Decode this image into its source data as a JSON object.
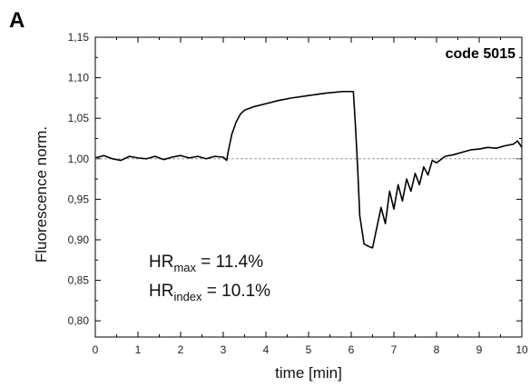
{
  "panel_letter": "A",
  "annotations": {
    "code": "code 5015",
    "hr_max": {
      "base": "HR",
      "sub": "max",
      "rest": " = 11.4%"
    },
    "hr_index": {
      "base": "HR",
      "sub": "index",
      "rest": " = 10.1%"
    }
  },
  "chart_data": {
    "type": "line",
    "xlabel": "time [min]",
    "ylabel": "Fluorescence norm.",
    "xlim": [
      0,
      10
    ],
    "ylim": [
      0.78,
      1.15
    ],
    "x_ticks": [
      0,
      1,
      2,
      3,
      4,
      5,
      6,
      7,
      8,
      9,
      10
    ],
    "x_tick_labels": [
      "0",
      "1",
      "2",
      "3",
      "4",
      "5",
      "6",
      "7",
      "8",
      "9",
      "10"
    ],
    "y_ticks": [
      0.8,
      0.85,
      0.9,
      0.95,
      1.0,
      1.05,
      1.1,
      1.15
    ],
    "y_tick_labels": [
      "0,80",
      "0,85",
      "0,90",
      "0,95",
      "1,00",
      "1,05",
      "1,10",
      "1,15"
    ],
    "reference_line": {
      "y": 1.0,
      "style": "dashed",
      "color": "#9a9a9a"
    },
    "grid": false,
    "line_color": "#000000",
    "series": [
      {
        "x": [
          0,
          0.2,
          0.4,
          0.6,
          0.8,
          1.0,
          1.2,
          1.4,
          1.6,
          1.8,
          2.0,
          2.2,
          2.4,
          2.6,
          2.8,
          3.0,
          3.08,
          3.12,
          3.2,
          3.3,
          3.4,
          3.5,
          3.7,
          4.0,
          4.3,
          4.6,
          5.0,
          5.4,
          5.8,
          6.05,
          6.1,
          6.15,
          6.2,
          6.3,
          6.4,
          6.5,
          6.6,
          6.7,
          6.8,
          6.9,
          7.0,
          7.1,
          7.2,
          7.3,
          7.4,
          7.5,
          7.6,
          7.7,
          7.8,
          7.9,
          8.0,
          8.2,
          8.4,
          8.6,
          8.8,
          9.0,
          9.2,
          9.4,
          9.6,
          9.8,
          9.9,
          10.0
        ],
        "y": [
          1.001,
          1.004,
          1.0,
          0.998,
          1.003,
          1.001,
          1.0,
          1.003,
          0.999,
          1.002,
          1.004,
          1.001,
          1.003,
          1.0,
          1.003,
          1.002,
          0.998,
          1.01,
          1.03,
          1.045,
          1.055,
          1.06,
          1.064,
          1.068,
          1.072,
          1.075,
          1.078,
          1.081,
          1.083,
          1.083,
          1.04,
          0.99,
          0.93,
          0.895,
          0.892,
          0.89,
          0.915,
          0.94,
          0.92,
          0.96,
          0.938,
          0.968,
          0.948,
          0.975,
          0.96,
          0.982,
          0.968,
          0.99,
          0.98,
          0.998,
          0.995,
          1.003,
          1.005,
          1.008,
          1.011,
          1.012,
          1.014,
          1.013,
          1.016,
          1.018,
          1.022,
          1.014
        ]
      }
    ]
  }
}
